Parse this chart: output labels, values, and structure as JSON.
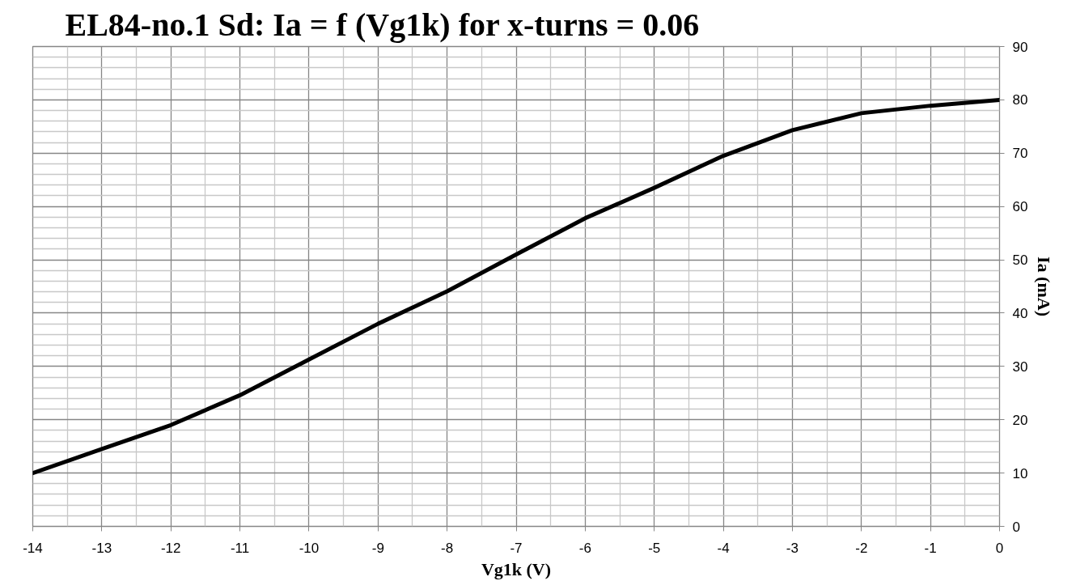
{
  "chart_data": {
    "type": "line",
    "title": "EL84-no.1  Sd: Ia = f (Vg1k) for x-turns = 0.06",
    "xlabel": "Vg1k (V)",
    "ylabel": "Ia (mA)",
    "x": [
      -14,
      -13,
      -12,
      -11,
      -10,
      -9,
      -8,
      -7,
      -6,
      -5,
      -4,
      -3,
      -2,
      -1,
      0
    ],
    "series": [
      {
        "color": "#000000",
        "values": [
          10,
          14.5,
          19,
          24.6,
          31.3,
          38,
          44.1,
          51,
          57.8,
          63.5,
          69.5,
          74.3,
          77.5,
          78.9,
          80
        ]
      }
    ],
    "xlim": [
      -14,
      0
    ],
    "ylim": [
      0,
      90
    ],
    "xticks": [
      -14,
      -13,
      -12,
      -11,
      -10,
      -9,
      -8,
      -7,
      -6,
      -5,
      -4,
      -3,
      -2,
      -1,
      0
    ],
    "yticks": [
      0,
      10,
      20,
      30,
      40,
      50,
      60,
      70,
      80,
      90
    ],
    "grid": true,
    "marker": "none",
    "line_style": "solid"
  }
}
